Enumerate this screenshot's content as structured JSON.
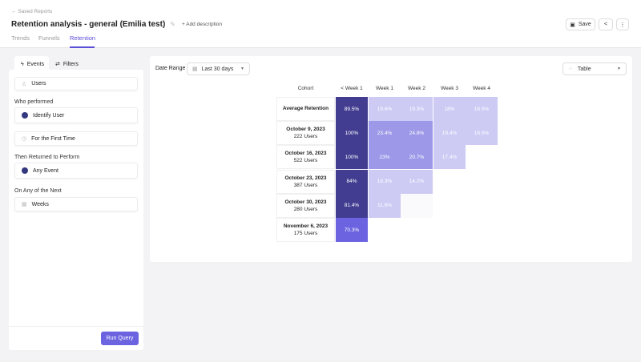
{
  "header": {
    "breadcrumb": "Saved Reports",
    "title": "Retention analysis - general (Emilia test)",
    "add_description": "+ Add description",
    "save": "Save",
    "tabs": [
      {
        "label": "Trends"
      },
      {
        "label": "Funnels"
      },
      {
        "label": "Retention",
        "active": true
      }
    ]
  },
  "sidebar": {
    "tabs": [
      {
        "label": "Events",
        "active": true
      },
      {
        "label": "Filters"
      }
    ],
    "entity": "Users",
    "who_performed_label": "Who performed",
    "who_performed": "Identify User",
    "frequency": "For the First Time",
    "returned_label": "Then Returned to Perform",
    "returned": "Any Event",
    "next_label": "On Any of the Next",
    "period": "Weeks",
    "run": "Run Query"
  },
  "toolbar": {
    "date_range_label": "Date Range",
    "date_range": "Last 30 days",
    "view": "Table"
  },
  "colors": {
    "accent": "#5b4fd8",
    "dark": "#433d91",
    "mid": "#9d98e8",
    "light": "#cdcaf4",
    "bright": "#6b63e0"
  },
  "table": {
    "columns": [
      "Cohort",
      "< Week 1",
      "Week 1",
      "Week 2",
      "Week 3",
      "Week 4"
    ],
    "rows": [
      {
        "cohort": "Average Retention",
        "users": "",
        "values": [
          "89.5%",
          "19.6%",
          "19.3%",
          "18%",
          "18.5%"
        ],
        "shades": [
          "dark",
          "light",
          "light",
          "light",
          "light"
        ]
      },
      {
        "cohort": "October 9, 2023",
        "users": "222 Users",
        "values": [
          "100%",
          "23.4%",
          "24.8%",
          "19.4%",
          "18.5%"
        ],
        "shades": [
          "dark",
          "mid",
          "mid",
          "light",
          "light"
        ]
      },
      {
        "cohort": "October 16, 2023",
        "users": "522 Users",
        "values": [
          "100%",
          "23%",
          "20.7%",
          "17.4%"
        ],
        "shades": [
          "dark",
          "mid",
          "mid",
          "light"
        ]
      },
      {
        "cohort": "October 23, 2023",
        "users": "387 Users",
        "values": [
          "84%",
          "18.3%",
          "14.2%"
        ],
        "shades": [
          "dark",
          "light",
          "light"
        ]
      },
      {
        "cohort": "October 30, 2023",
        "users": "280 Users",
        "values": [
          "81.4%",
          "11.6%",
          ""
        ],
        "shades": [
          "dark",
          "light",
          "empty"
        ]
      },
      {
        "cohort": "November 6, 2023",
        "users": "175 Users",
        "values": [
          "70.3%"
        ],
        "shades": [
          "bright"
        ]
      }
    ]
  }
}
